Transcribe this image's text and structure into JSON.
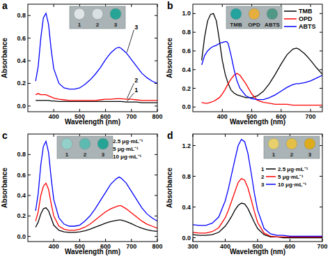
{
  "chart_data": [
    {
      "type": "line",
      "title": "a",
      "x_label": "Wavelength (nm)",
      "y_label": "Absorbance",
      "xlim": [
        300,
        800
      ],
      "xticks": [
        400,
        500,
        600,
        700,
        800
      ],
      "ylim": [
        -0.05,
        0.9
      ],
      "yticks": [
        {
          "value": 0,
          "label": "0.0"
        },
        0.2,
        0.4,
        0.6,
        0.8
      ],
      "x": [
        330,
        340,
        350,
        360,
        370,
        380,
        390,
        400,
        420,
        440,
        460,
        480,
        500,
        520,
        540,
        560,
        580,
        600,
        620,
        640,
        652,
        660,
        680,
        700,
        720,
        740,
        760,
        780,
        800
      ],
      "series": [
        {
          "name": "1",
          "color": "#000000",
          "values": [
            0.05,
            0.05,
            0.05,
            0.05,
            0.05,
            0.05,
            0.045,
            0.045,
            0.04,
            0.04,
            0.04,
            0.04,
            0.04,
            0.04,
            0.04,
            0.04,
            0.04,
            0.04,
            0.04,
            0.04,
            0.04,
            0.04,
            0.035,
            0.035,
            0.035,
            0.03,
            0.03,
            0.03,
            0.03
          ]
        },
        {
          "name": "2",
          "color": "#ff0000",
          "values": [
            0.1,
            0.11,
            0.1,
            0.1,
            0.1,
            0.09,
            0.08,
            0.07,
            0.06,
            0.055,
            0.05,
            0.05,
            0.05,
            0.05,
            0.05,
            0.05,
            0.055,
            0.06,
            0.06,
            0.065,
            0.065,
            0.065,
            0.06,
            0.06,
            0.055,
            0.05,
            0.05,
            0.05,
            0.05
          ]
        },
        {
          "name": "3",
          "color": "#0000ff",
          "values": [
            0.22,
            0.35,
            0.6,
            0.78,
            0.82,
            0.72,
            0.5,
            0.33,
            0.2,
            0.16,
            0.15,
            0.15,
            0.16,
            0.19,
            0.23,
            0.28,
            0.34,
            0.41,
            0.47,
            0.51,
            0.52,
            0.51,
            0.47,
            0.41,
            0.35,
            0.29,
            0.25,
            0.22,
            0.2
          ]
        }
      ],
      "inset": {
        "labels": [
          "1",
          "2",
          "3"
        ],
        "colors": [
          "#dfe4e6",
          "#d9e0e3",
          "#26a596"
        ]
      }
    },
    {
      "type": "line",
      "title": "b",
      "x_label": "Wavelength (nm)",
      "y_label": "Absorbance",
      "xlim": [
        300,
        740
      ],
      "xticks": [
        400,
        500,
        600,
        700
      ],
      "ylim": [
        -0.05,
        1.1
      ],
      "yticks": [
        {
          "value": 0,
          "label": "0.0"
        },
        0.2,
        0.4,
        0.6,
        0.8,
        {
          "value": 1,
          "label": "1.0"
        }
      ],
      "legend": "upper right",
      "x": [
        330,
        340,
        350,
        360,
        370,
        380,
        390,
        400,
        410,
        415,
        420,
        430,
        440,
        450,
        460,
        480,
        500,
        520,
        540,
        560,
        580,
        600,
        620,
        640,
        652,
        660,
        680,
        700,
        720,
        740
      ],
      "series": [
        {
          "name": "TMB",
          "color": "#000000",
          "values": [
            0.5,
            0.75,
            0.92,
            0.99,
            1.0,
            0.92,
            0.72,
            0.5,
            0.35,
            0.3,
            0.25,
            0.18,
            0.15,
            0.13,
            0.12,
            0.1,
            0.1,
            0.12,
            0.17,
            0.25,
            0.35,
            0.46,
            0.56,
            0.62,
            0.63,
            0.62,
            0.57,
            0.5,
            0.42,
            0.35
          ]
        },
        {
          "name": "OPD",
          "color": "#ff0000",
          "values": [
            0.05,
            0.04,
            0.04,
            0.05,
            0.06,
            0.08,
            0.1,
            0.14,
            0.19,
            0.22,
            0.25,
            0.3,
            0.34,
            0.36,
            0.34,
            0.25,
            0.14,
            0.07,
            0.05,
            0.04,
            0.03,
            0.03,
            0.03,
            0.02,
            0.02,
            0.02,
            0.02,
            0.02,
            0.02,
            0.02
          ]
        },
        {
          "name": "ABTS",
          "color": "#0000ff",
          "values": [
            0.45,
            0.55,
            0.6,
            0.63,
            0.65,
            0.66,
            0.68,
            0.69,
            0.7,
            0.7,
            0.68,
            0.55,
            0.4,
            0.28,
            0.2,
            0.12,
            0.09,
            0.08,
            0.08,
            0.1,
            0.13,
            0.17,
            0.21,
            0.24,
            0.25,
            0.25,
            0.26,
            0.28,
            0.31,
            0.34
          ]
        }
      ],
      "inset": {
        "labels": [
          "TMB",
          "OPD",
          "ABTS"
        ],
        "colors": [
          "#24a39e",
          "#e6ae3c",
          "#4f9886"
        ]
      }
    },
    {
      "type": "line",
      "title": "c",
      "x_label": "Wavelength (nm)",
      "y_label": "Absorbance",
      "xlim": [
        300,
        800
      ],
      "xticks": [
        400,
        500,
        600,
        700,
        800
      ],
      "ylim": [
        -0.05,
        1.0
      ],
      "yticks": [
        {
          "value": 0,
          "label": "0.0"
        },
        0.2,
        0.4,
        0.6,
        0.8
      ],
      "legend": "upper right",
      "x": [
        330,
        340,
        350,
        360,
        370,
        380,
        390,
        400,
        420,
        440,
        460,
        480,
        500,
        520,
        540,
        560,
        580,
        600,
        620,
        640,
        652,
        660,
        680,
        700,
        720,
        740,
        760,
        780,
        800
      ],
      "series": [
        {
          "label": "1",
          "name": "2.5 μg·mL⁻¹",
          "color": "#000000",
          "values": [
            0.09,
            0.14,
            0.22,
            0.27,
            0.28,
            0.25,
            0.18,
            0.11,
            0.06,
            0.045,
            0.04,
            0.04,
            0.045,
            0.055,
            0.07,
            0.09,
            0.11,
            0.13,
            0.145,
            0.155,
            0.16,
            0.16,
            0.145,
            0.125,
            0.1,
            0.08,
            0.065,
            0.055,
            0.05
          ]
        },
        {
          "label": "2",
          "name": "5 μg·mL⁻¹",
          "color": "#ff0000",
          "values": [
            0.15,
            0.24,
            0.4,
            0.49,
            0.52,
            0.46,
            0.32,
            0.2,
            0.1,
            0.07,
            0.06,
            0.06,
            0.07,
            0.09,
            0.12,
            0.16,
            0.2,
            0.24,
            0.27,
            0.29,
            0.3,
            0.3,
            0.27,
            0.23,
            0.19,
            0.15,
            0.12,
            0.1,
            0.08
          ]
        },
        {
          "label": "3",
          "name": "10 μg·mL⁻¹",
          "color": "#0000ff",
          "values": [
            0.25,
            0.42,
            0.7,
            0.88,
            0.93,
            0.82,
            0.57,
            0.36,
            0.18,
            0.12,
            0.1,
            0.1,
            0.11,
            0.15,
            0.2,
            0.27,
            0.35,
            0.43,
            0.51,
            0.56,
            0.58,
            0.57,
            0.52,
            0.44,
            0.36,
            0.28,
            0.22,
            0.18,
            0.15
          ]
        }
      ],
      "inset": {
        "labels": [
          "1",
          "2",
          "3"
        ],
        "colors": [
          "#93d0c9",
          "#5cbab0",
          "#25a394"
        ]
      }
    },
    {
      "type": "line",
      "title": "d",
      "x_label": "Wavelength (nm)",
      "y_label": "Absorbance",
      "xlim": [
        300,
        700
      ],
      "xticks": [
        300,
        400,
        500,
        600,
        700
      ],
      "ylim": [
        -0.05,
        1.35
      ],
      "yticks": [
        {
          "value": 0,
          "label": "0.0"
        },
        0.4,
        0.8,
        1.2
      ],
      "legend": "center right",
      "x": [
        300,
        320,
        340,
        360,
        380,
        400,
        410,
        420,
        430,
        440,
        450,
        460,
        470,
        480,
        490,
        500,
        520,
        540,
        560,
        580,
        600,
        650,
        700
      ],
      "series": [
        {
          "label": "1",
          "name": "2.5 μg·mL⁻¹",
          "color": "#000000",
          "values": [
            0.04,
            0.03,
            0.03,
            0.04,
            0.07,
            0.15,
            0.21,
            0.28,
            0.36,
            0.42,
            0.45,
            0.44,
            0.38,
            0.29,
            0.2,
            0.12,
            0.04,
            0.01,
            0.01,
            0.0,
            0.0,
            0.0,
            0.0
          ]
        },
        {
          "label": "2",
          "name": "5 μg·mL⁻¹",
          "color": "#ff0000",
          "values": [
            0.07,
            0.06,
            0.06,
            0.08,
            0.13,
            0.26,
            0.36,
            0.48,
            0.6,
            0.72,
            0.77,
            0.75,
            0.65,
            0.5,
            0.34,
            0.2,
            0.06,
            0.02,
            0.01,
            0.01,
            0.01,
            0.01,
            0.01
          ]
        },
        {
          "label": "3",
          "name": "10 μg·mL⁻¹",
          "color": "#0000ff",
          "values": [
            0.17,
            0.16,
            0.16,
            0.19,
            0.27,
            0.48,
            0.64,
            0.83,
            1.02,
            1.2,
            1.28,
            1.25,
            1.1,
            0.85,
            0.58,
            0.36,
            0.12,
            0.05,
            0.03,
            0.03,
            0.02,
            0.02,
            0.02
          ]
        }
      ],
      "inset": {
        "labels": [
          "1",
          "2",
          "3"
        ],
        "colors": [
          "#e6cf6c",
          "#e4bf46",
          "#dcac1e"
        ]
      }
    }
  ]
}
